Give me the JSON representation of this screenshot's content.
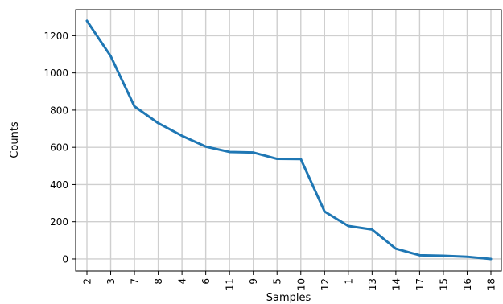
{
  "chart_data": {
    "type": "line",
    "xlabel": "Samples",
    "ylabel": "Counts",
    "categories": [
      "2",
      "3",
      "7",
      "8",
      "4",
      "6",
      "11",
      "9",
      "5",
      "10",
      "12",
      "1",
      "13",
      "14",
      "17",
      "15",
      "16",
      "18"
    ],
    "values": [
      1280,
      1090,
      820,
      730,
      662,
      604,
      575,
      572,
      538,
      537,
      255,
      177,
      158,
      55,
      20,
      17,
      12,
      0
    ],
    "ylim": [
      -65,
      1340
    ],
    "yticks": [
      0,
      200,
      400,
      600,
      800,
      1000,
      1200
    ],
    "grid": true,
    "colors": {
      "line": "#1f77b4"
    }
  }
}
